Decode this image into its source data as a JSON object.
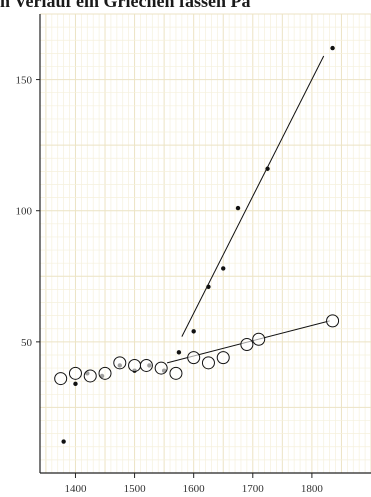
{
  "chart_data": {
    "type": "scatter",
    "title": "n Verlauf ein Griechen fassen Pa",
    "xlabel": "",
    "ylabel": "",
    "xlim": [
      1340,
      1900
    ],
    "ylim": [
      0,
      175
    ],
    "grid": true,
    "x_ticks": [
      1400,
      1500,
      1600,
      1700,
      1800
    ],
    "y_ticks": [
      50,
      100,
      150
    ],
    "series": [
      {
        "marker": "filled-dot",
        "color": "#111111",
        "points": [
          {
            "x": 1380,
            "y": 12
          },
          {
            "x": 1400,
            "y": 34
          },
          {
            "x": 1420,
            "y": 38
          },
          {
            "x": 1445,
            "y": 37
          },
          {
            "x": 1475,
            "y": 41
          },
          {
            "x": 1500,
            "y": 39
          },
          {
            "x": 1525,
            "y": 41
          },
          {
            "x": 1550,
            "y": 39
          },
          {
            "x": 1575,
            "y": 46
          },
          {
            "x": 1600,
            "y": 54
          },
          {
            "x": 1625,
            "y": 71
          },
          {
            "x": 1650,
            "y": 78
          },
          {
            "x": 1675,
            "y": 101
          },
          {
            "x": 1725,
            "y": 116
          },
          {
            "x": 1835,
            "y": 162
          }
        ],
        "trend_line": [
          {
            "x": 1580,
            "y": 52
          },
          {
            "x": 1820,
            "y": 159
          }
        ]
      },
      {
        "marker": "open-circle",
        "color": "#111111",
        "points": [
          {
            "x": 1375,
            "y": 36
          },
          {
            "x": 1400,
            "y": 38
          },
          {
            "x": 1425,
            "y": 37
          },
          {
            "x": 1450,
            "y": 38
          },
          {
            "x": 1475,
            "y": 42
          },
          {
            "x": 1500,
            "y": 41
          },
          {
            "x": 1520,
            "y": 41
          },
          {
            "x": 1545,
            "y": 40
          },
          {
            "x": 1570,
            "y": 38
          },
          {
            "x": 1600,
            "y": 44
          },
          {
            "x": 1625,
            "y": 42
          },
          {
            "x": 1650,
            "y": 44
          },
          {
            "x": 1690,
            "y": 49
          },
          {
            "x": 1710,
            "y": 51
          },
          {
            "x": 1835,
            "y": 58
          }
        ],
        "trend_line": [
          {
            "x": 1555,
            "y": 42
          },
          {
            "x": 1830,
            "y": 58
          }
        ]
      }
    ]
  }
}
